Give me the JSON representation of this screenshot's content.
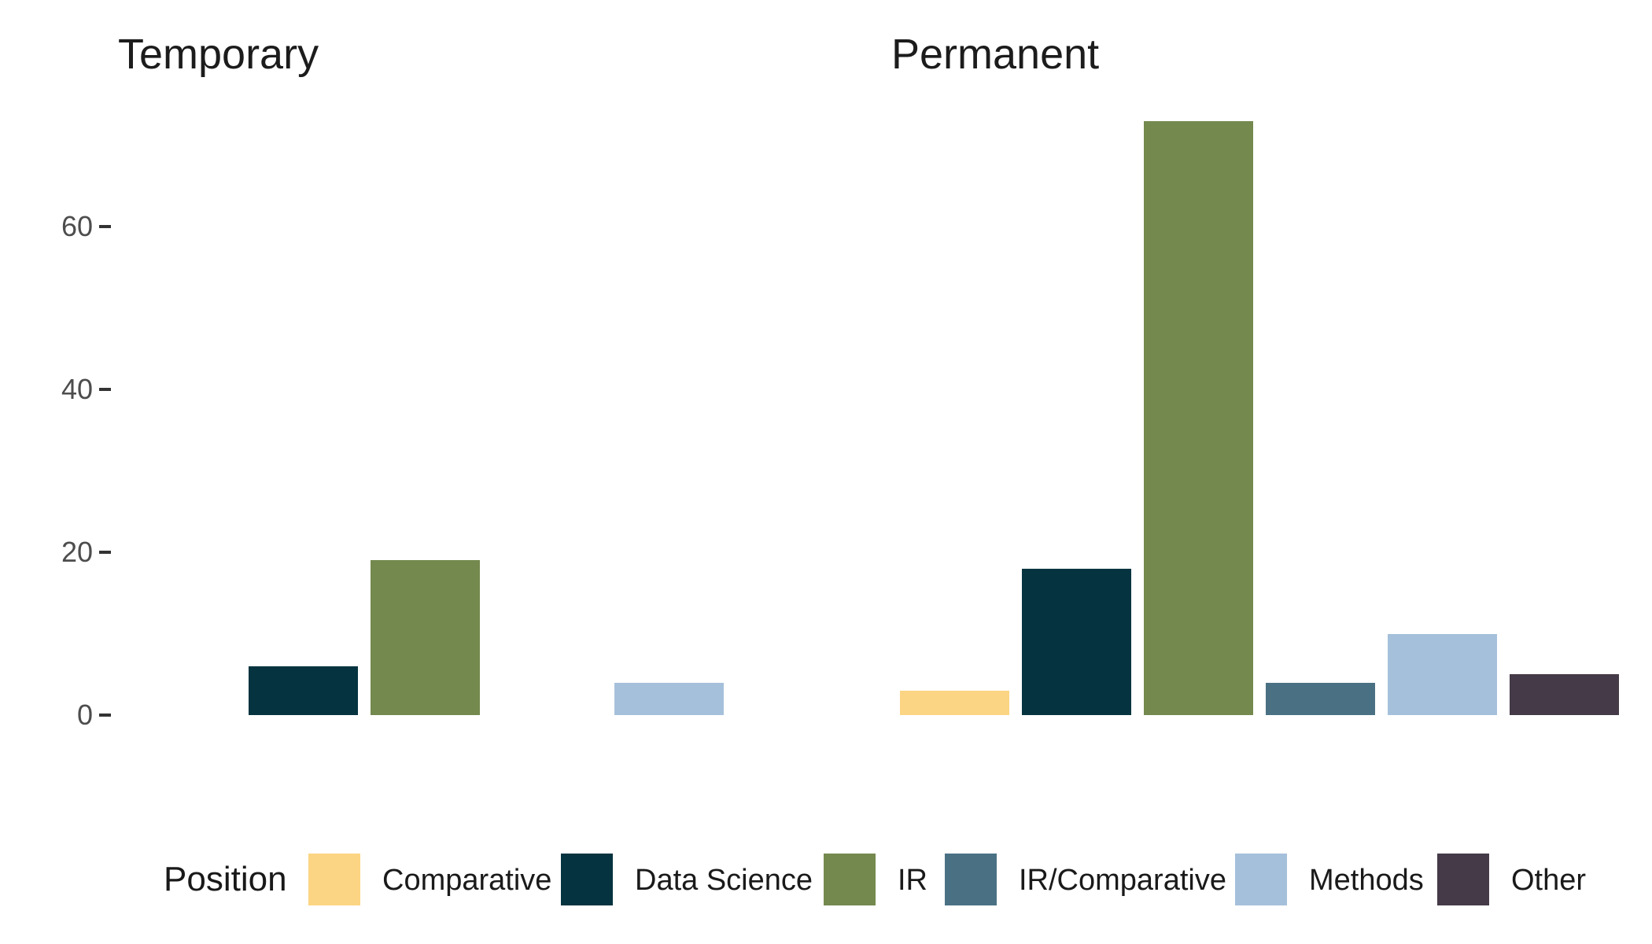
{
  "chart_data": {
    "type": "bar",
    "title": "",
    "facets": [
      {
        "title": "Temporary",
        "values": [
          0,
          6,
          19,
          0,
          4,
          0
        ]
      },
      {
        "title": "Permanent",
        "values": [
          3,
          18,
          73,
          4,
          10,
          5
        ]
      }
    ],
    "categories": [
      "Comparative",
      "Data Science",
      "IR",
      "IR/Comparative",
      "Methods",
      "Other"
    ],
    "colors": [
      "#fbd583",
      "#053440",
      "#74894e",
      "#4a7183",
      "#a5c0db",
      "#453a47"
    ],
    "yticks": [
      0,
      20,
      40,
      60
    ],
    "ylim": [
      0,
      76
    ],
    "xlabel": "",
    "ylabel": "",
    "grid": "off",
    "legend": {
      "title": "Position",
      "position": "bottom"
    },
    "style": {
      "background": "#ffffff",
      "strip_text_color": "#1c1c1c",
      "axis_text_color": "#4d4d4d",
      "tick_mark_color": "#333333",
      "legend_text_color": "#1a1a1a"
    }
  }
}
